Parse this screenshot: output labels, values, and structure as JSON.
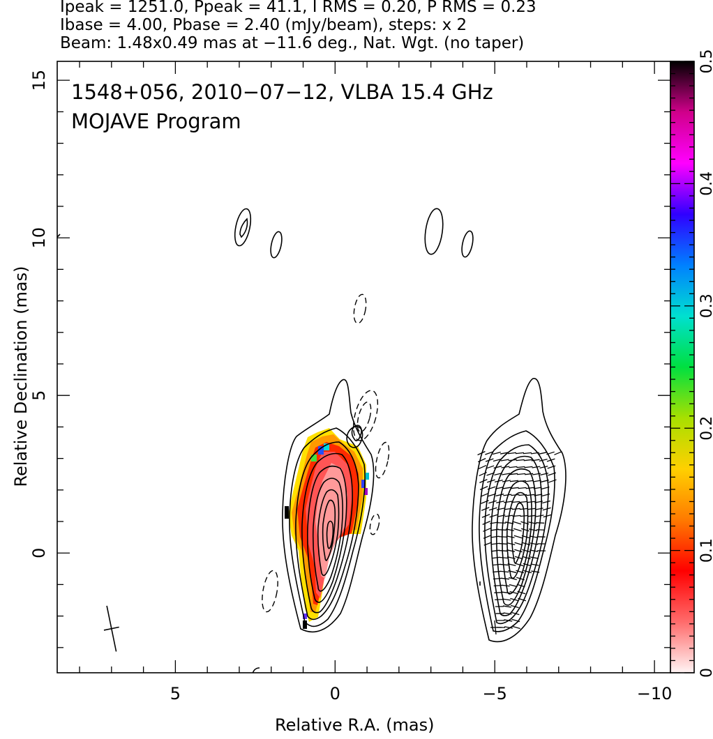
{
  "header": {
    "line1": "Ipeak = 1251.0, Ppeak = 41.1, I RMS = 0.20, P RMS = 0.23",
    "line2": "Ibase = 4.00, Pbase = 2.40 (mJy/beam), steps: x 2",
    "line3": "Beam: 1.48x0.49 mas at −11.6 deg., Nat. Wgt. (no taper)"
  },
  "chart_data": {
    "type": "contour",
    "title_line1": "1548+056, 2010−07−12, VLBA 15.4 GHz",
    "title_line2": "MOJAVE Program",
    "xlabel": "Relative R.A. (mas)",
    "ylabel": "Relative Declination (mas)",
    "xlim": [
      8.7,
      -10.5
    ],
    "ylim": [
      -3.8,
      15.6
    ],
    "x_ticks": [
      5,
      0,
      -5,
      -10
    ],
    "x_tick_labels": [
      "5",
      "0",
      "−5",
      "−10"
    ],
    "y_ticks": [
      0,
      5,
      10,
      15
    ],
    "y_tick_labels": [
      "0",
      "5",
      "10",
      "15"
    ],
    "colorbar": {
      "min": 0,
      "max": 0.5,
      "ticks": [
        0,
        0.1,
        0.2,
        0.3,
        0.4,
        0.5
      ],
      "tick_labels": [
        "0",
        "0.1",
        "0.2",
        "0.3",
        "0.4",
        "0.5"
      ],
      "colormap": [
        "#fff4f4",
        "#ff6b6b",
        "#ff0000",
        "#ff7a00",
        "#ffd000",
        "#a8e000",
        "#00e040",
        "#00e0d0",
        "#0080ff",
        "#3000ff",
        "#ff00ff",
        "#d0008a",
        "#000000"
      ]
    },
    "beam": {
      "major_mas": 1.48,
      "minor_mas": 0.49,
      "pa_deg": -11.6,
      "center": [
        7.0,
        -2.4
      ]
    },
    "ipeak": 1251.0,
    "ppeak": 41.1,
    "i_rms": 0.2,
    "p_rms": 0.23,
    "ibase": 4.0,
    "pbase": 2.4,
    "step_factor": 2
  }
}
